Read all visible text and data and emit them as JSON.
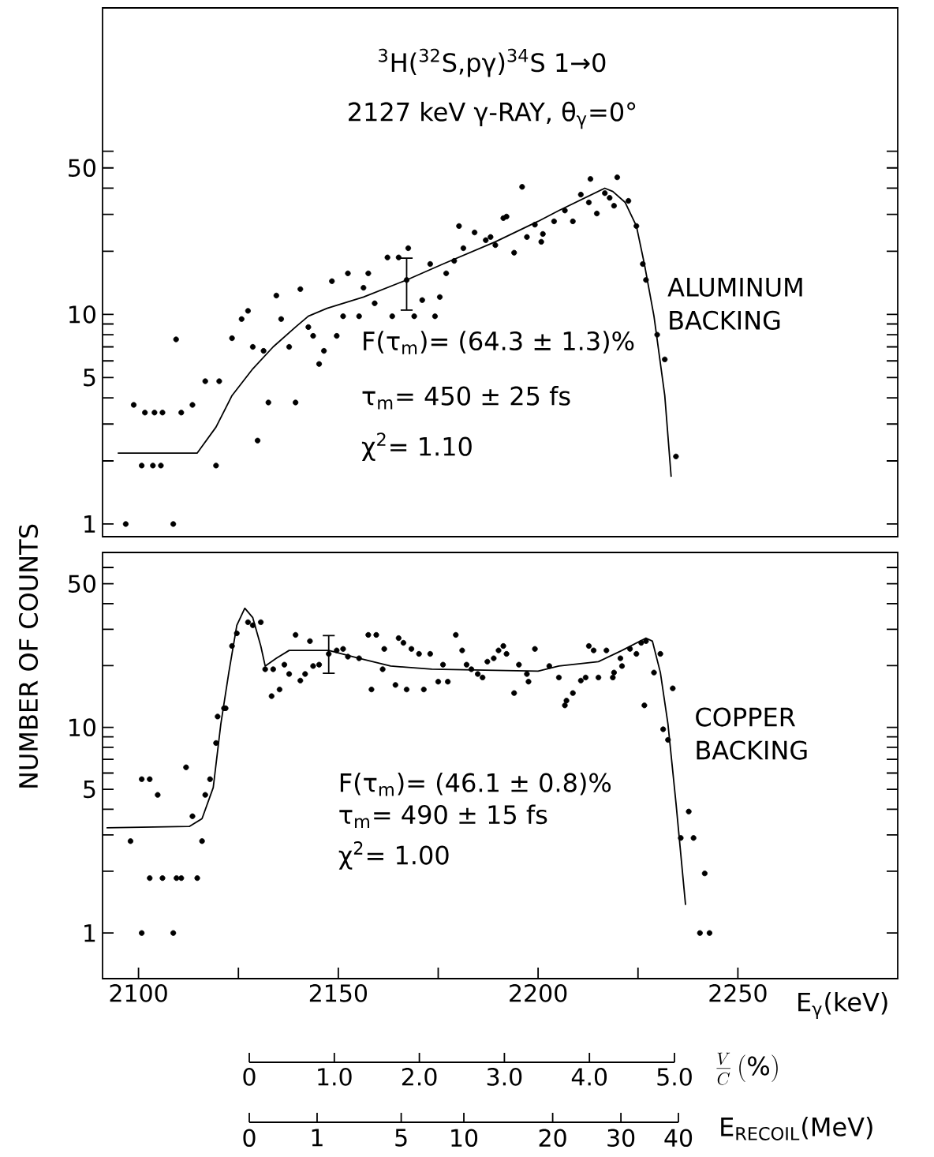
{
  "chart_data": [
    {
      "type": "scatter",
      "title": "$^{3}$H($^{32}$S,pγ)$^{34}$S  1→0",
      "subtitle": "2127 keV γ-RAY, θ$_{γ}$=0°",
      "annotations": [
        "F(τ$_{m}$)= (64.3 ± 1.3)%",
        "τ$_{m}$= 450 ± 25 fs",
        "χ$^{2}$= 1.10",
        "ALUMINUM BACKING"
      ],
      "log": true,
      "marker": "circle",
      "tick_labels": "y",
      "xlim": [
        2091,
        2290
      ],
      "ylim": [
        0.87,
        290
      ],
      "yticks": [
        1,
        {
          "value": 2,
          "label": null
        },
        {
          "value": 3,
          "label": null
        },
        {
          "value": 4,
          "label": null
        },
        5,
        {
          "value": 6,
          "label": null
        },
        {
          "value": 7,
          "label": null
        },
        {
          "value": 8,
          "label": null
        },
        {
          "value": 9,
          "label": null
        },
        10,
        {
          "value": 20,
          "label": null
        },
        {
          "value": 30,
          "label": null
        },
        {
          "value": 40,
          "label": null
        },
        50,
        {
          "value": 60,
          "label": null
        }
      ],
      "series": [
        {
          "color": "#000000",
          "x": [
            2096.8,
            2108.7,
            2109.4,
            2098.8,
            2101.6,
            2104,
            2106,
            2110.7,
            2100.8,
            2103.6,
            2105.6,
            2113.5,
            2116.7,
            2120.2,
            2119.4,
            2123.4,
            2127.4,
            2125.8,
            2128.6,
            2131.3,
            2132.5,
            2129.8,
            2134.5,
            2135.7,
            2137.7,
            2139.3,
            2140.5,
            2142.5,
            2143.7,
            2146.4,
            2145.2,
            2148.4,
            2149.6,
            2151.2,
            2152.4,
            2155.2,
            2157.5,
            2156.3,
            2159.1,
            2162.3,
            2163.5,
            2165.1,
            2167.5,
            2169,
            2171,
            2173,
            2174.2,
            2175.4,
            2177,
            2179,
            2180.2,
            2181.3,
            2184.1,
            2186.9,
            2188.1,
            2189.3,
            2191.3,
            2194,
            2196,
            2197.2,
            2192.1,
            2199.2,
            2201.2,
            2200.8,
            2204,
            2206.7,
            2208.7,
            2210.7,
            2213.1,
            2212.7,
            2214.7,
            2216.7,
            2217.9,
            2219.8,
            2219,
            2222.6,
            2224.6,
            2226.2,
            2227,
            2229.8,
            2231.7,
            2234.5
          ],
          "values": [
            1.0,
            1.0,
            7.6,
            3.7,
            3.4,
            3.4,
            3.4,
            3.4,
            1.9,
            1.9,
            1.9,
            3.7,
            4.8,
            4.8,
            1.9,
            7.7,
            10.4,
            9.5,
            7.0,
            6.7,
            3.8,
            2.5,
            12.3,
            9.5,
            7.0,
            3.8,
            13.2,
            8.7,
            7.9,
            6.7,
            5.8,
            14.4,
            7.9,
            9.8,
            15.7,
            9.8,
            15.7,
            13.4,
            11.3,
            18.7,
            9.8,
            18.7,
            20.7,
            9.8,
            11.7,
            17.4,
            9.8,
            12.1,
            15.7,
            18.0,
            26.4,
            20.7,
            24.6,
            22.6,
            23.4,
            21.4,
            28.8,
            19.7,
            40.6,
            23.4,
            29.3,
            26.8,
            24.2,
            22.2,
            27.8,
            31.3,
            27.8,
            37.3,
            44.3,
            34.2,
            30.3,
            37.9,
            36.0,
            45.1,
            33.0,
            34.8,
            26.4,
            17.4,
            14.6,
            8.0,
            6.1,
            2.1
          ]
        },
        {
          "color": "#000000",
          "x": [
            2167.1
          ],
          "values": [
            14.6
          ],
          "errors": [
            [
              10.4,
              18.7
            ]
          ]
        },
        {
          "type": "line",
          "marker": "none",
          "color": "#000000",
          "x": [
            2094.8,
            2114.7,
            2119.4,
            2123.4,
            2128.6,
            2133.7,
            2139.3,
            2142.5,
            2147.2,
            2156.3,
            2167.1,
            2176.2,
            2189.3,
            2200,
            2205.2,
            2216.7,
            2218.7,
            2221.8,
            2224.6,
            2226.6,
            2229,
            2231.7,
            2233.3
          ],
          "values": [
            2.18,
            2.18,
            2.9,
            4.1,
            5.5,
            7.0,
            8.7,
            9.8,
            10.7,
            12.1,
            14.6,
            17.4,
            22.2,
            27.8,
            31.3,
            40.0,
            38.6,
            34.2,
            26.4,
            17.4,
            9.8,
            4.1,
            1.68
          ]
        }
      ]
    },
    {
      "type": "scatter",
      "ylabel": "NUMBER OF COUNTS",
      "xlabel": "E$_{γ}$(keV)",
      "annotations": [
        "F(τ$_{m}$)= (46.1 ± 0.8)%",
        "τ$_{m}$= 490 ± 15 fs",
        "χ$^{2}$= 1.00",
        "COPPER BACKING"
      ],
      "log": true,
      "marker": "circle",
      "xlim": [
        2091,
        2290
      ],
      "ylim": [
        0.6,
        71
      ],
      "xticks": [
        2100,
        {
          "value": 2125,
          "label": null
        },
        2150,
        {
          "value": 2175,
          "label": null
        },
        2200,
        {
          "value": 2225,
          "label": null
        },
        2250
      ],
      "yticks": [
        1,
        {
          "value": 2,
          "label": null
        },
        {
          "value": 3,
          "label": null
        },
        {
          "value": 4,
          "label": null
        },
        5,
        {
          "value": 6,
          "label": null
        },
        {
          "value": 7,
          "label": null
        },
        {
          "value": 8,
          "label": null
        },
        {
          "value": 9,
          "label": null
        },
        10,
        {
          "value": 20,
          "label": null
        },
        {
          "value": 30,
          "label": null
        },
        {
          "value": 40,
          "label": null
        },
        50,
        {
          "value": 60,
          "label": null
        }
      ],
      "x2lim": [
        0,
        5.0
      ],
      "x2ticks": [
        0,
        {
          "value": 1.0,
          "label": "1.0"
        },
        {
          "value": 2.0,
          "label": "2.0"
        },
        {
          "value": 3.0,
          "label": "3.0"
        },
        {
          "value": 4.0,
          "label": "4.0"
        },
        {
          "value": 5.0,
          "label": "5.0"
        }
      ],
      "x2label": "\\frac{V}{C}\\,(\\%)",
      "series": [
        {
          "color": "#000000",
          "x": [
            2098,
            2100.8,
            2102.8,
            2104.8,
            2102.8,
            2106,
            2109.5,
            2110.7,
            2114.7,
            2100.8,
            2108.7,
            2111.9,
            2113.5,
            2115.9,
            2116.7,
            2117.9,
            2119.4,
            2119.8,
            2121.4,
            2121.8,
            2123.4,
            2124.6,
            2127.4,
            2128.6,
            2130.6,
            2131.7,
            2133.7,
            2133.3,
            2135.3,
            2136.5,
            2139.3,
            2137.7,
            2140.5,
            2141.7,
            2142.9,
            2143.7,
            2145.2,
            2149.6,
            2151.2,
            2152.4,
            2155.2,
            2157.5,
            2159.5,
            2158.3,
            2161.1,
            2161.5,
            2165.1,
            2166.3,
            2164.3,
            2167.1,
            2168.3,
            2170.2,
            2171.4,
            2173,
            2175,
            2176.2,
            2177.4,
            2179.4,
            2181,
            2182.1,
            2183.3,
            2184.9,
            2186.1,
            2187.3,
            2188.9,
            2190.1,
            2191.3,
            2192.1,
            2194,
            2195.2,
            2197.2,
            2197.6,
            2199.2,
            2202.8,
            2205.2,
            2206.7,
            2207.1,
            2208.7,
            2210.7,
            2211.9,
            2212.7,
            2213.9,
            2215.1,
            2217.1,
            2218.7,
            2219,
            2220.6,
            2221,
            2223,
            2224.6,
            2225.8,
            2226.6,
            2227,
            2229,
            2230.6,
            2233.7,
            2231.3,
            2232.5,
            2237.7,
            2235.7,
            2238.9,
            2241.7,
            2240.5,
            2242.9
          ],
          "values": [
            2.8,
            5.6,
            5.6,
            4.7,
            1.85,
            1.85,
            1.85,
            1.85,
            1.85,
            1.0,
            1.0,
            6.4,
            3.7,
            2.8,
            4.7,
            5.6,
            8.4,
            11.3,
            12.4,
            12.4,
            24.9,
            28.7,
            32.5,
            31.4,
            32.5,
            19.2,
            19.2,
            14.2,
            15.3,
            20.2,
            28.2,
            18.2,
            16.9,
            18.2,
            26.3,
            19.9,
            20.2,
            23.7,
            24.1,
            22.1,
            21.7,
            28.2,
            28.2,
            15.3,
            19.2,
            24.1,
            27.2,
            25.8,
            16.1,
            15.3,
            24.1,
            22.8,
            15.3,
            22.8,
            16.7,
            20.2,
            16.7,
            28.2,
            23.7,
            20.2,
            19.2,
            18.2,
            17.5,
            20.9,
            21.7,
            23.7,
            24.9,
            22.8,
            14.7,
            20.2,
            18.2,
            16.7,
            24.1,
            19.9,
            17.5,
            12.8,
            13.5,
            14.7,
            16.9,
            17.5,
            24.9,
            23.7,
            17.5,
            23.7,
            17.5,
            18.5,
            21.7,
            19.9,
            24.1,
            22.8,
            25.8,
            12.8,
            26.3,
            18.5,
            22.8,
            15.5,
            9.8,
            8.7,
            3.9,
            2.9,
            2.9,
            1.95,
            1.0,
            1.0
          ]
        },
        {
          "color": "#000000",
          "x": [
            2147.6
          ],
          "values": [
            22.8
          ],
          "errors": [
            [
              18.2,
              28.2
            ]
          ]
        },
        {
          "type": "line",
          "marker": "none",
          "color": "#000000",
          "x": [
            2092,
            2112.7,
            2115.9,
            2118.7,
            2120.6,
            2122.6,
            2124.6,
            2126.6,
            2128.6,
            2130.6,
            2131.7,
            2134.5,
            2137.7,
            2147.6,
            2155.2,
            2163.1,
            2173.4,
            2200,
            2205.2,
            2215.1,
            2221,
            2227,
            2228.6,
            2230.6,
            2232.5,
            2234.5,
            2236.9
          ],
          "values": [
            3.25,
            3.3,
            3.6,
            5.1,
            10.4,
            18.5,
            31.4,
            38.0,
            34.2,
            24.9,
            19.9,
            21.7,
            23.7,
            23.7,
            21.7,
            19.9,
            19.2,
            18.8,
            19.9,
            20.9,
            23.7,
            27.2,
            26.3,
            18.5,
            10.4,
            4.3,
            1.37
          ]
        }
      ]
    },
    {
      "type": "other",
      "xlabel": "E$_{RECOIL}$(MeV)",
      "annotations": [
        "0",
        "1",
        "5",
        "10",
        "20",
        "30",
        "40"
      ]
    }
  ]
}
